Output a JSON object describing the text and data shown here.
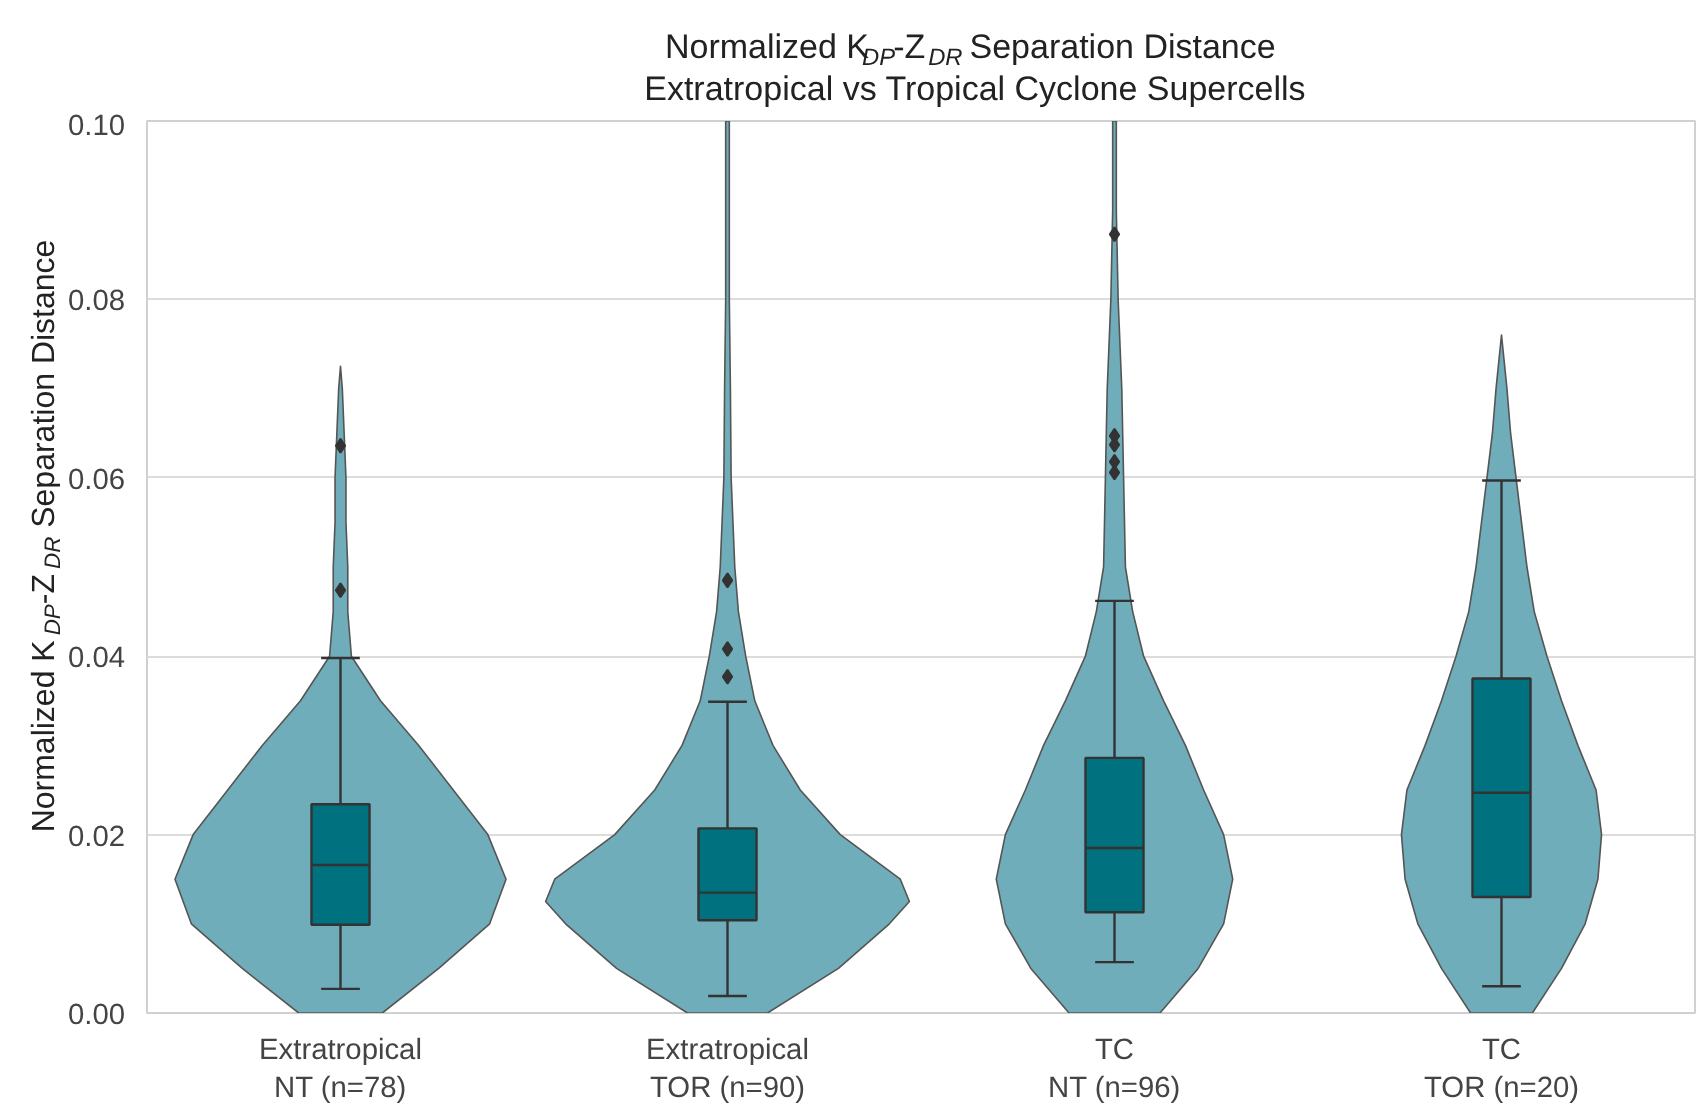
{
  "chart_data": {
    "type": "box",
    "title": "Normalized K$_{DP}$-Z$_{DR}$ Separation Distance\nExtratropical vs Tropical Cyclone Supercells",
    "ylabel": "Normalized K$_{DP}$-Z$_{DR}$ Separation Distance",
    "categories": [
      "Extratropical\nNT (n=78)",
      "Extratropical\nTOR (n=90)",
      "TC\nNT (n=96)",
      "TC\nTOR (n=20)"
    ],
    "ylim": [
      0,
      0.1
    ],
    "yticks": [
      {
        "value": 0,
        "label": "0.00"
      },
      {
        "value": 0.02,
        "label": "0.02"
      },
      {
        "value": 0.04,
        "label": "0.04"
      },
      {
        "value": 0.06,
        "label": "0.06"
      },
      {
        "value": 0.08,
        "label": "0.08"
      },
      {
        "value": 0.1,
        "label": "0.10"
      }
    ],
    "grid": "y",
    "series": [
      {
        "color": "#00727f",
        "boxes": [
          {
            "low": 0.0027,
            "q1": 0.0099,
            "median": 0.0166,
            "q3": 0.0234,
            "high": 0.0398,
            "outliers": [
              0.0474,
              0.0636
            ]
          },
          {
            "low": 0.0019,
            "q1": 0.0104,
            "median": 0.0135,
            "q3": 0.0207,
            "high": 0.0349,
            "outliers": [
              0.0377,
              0.0408,
              0.0485
            ]
          },
          {
            "low": 0.0057,
            "q1": 0.0113,
            "median": 0.0185,
            "q3": 0.0286,
            "high": 0.0462,
            "outliers": [
              0.0606,
              0.0618,
              0.0637,
              0.0647,
              0.0873
            ]
          },
          {
            "low": 0.003,
            "q1": 0.013,
            "median": 0.0247,
            "q3": 0.0375,
            "high": 0.0597
          }
        ]
      }
    ]
  }
}
